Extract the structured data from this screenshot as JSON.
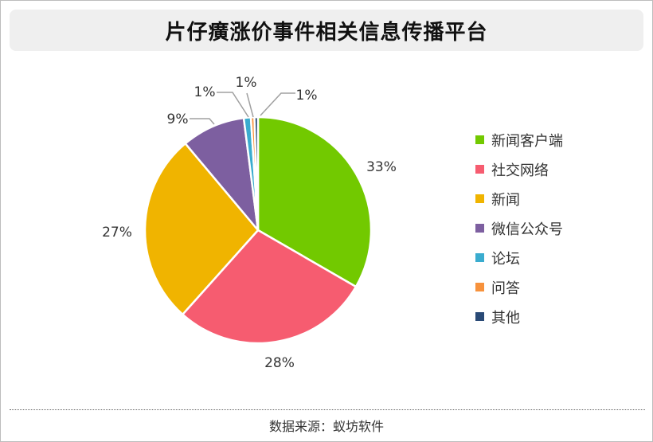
{
  "title": "片仔癀涨价事件相关信息传播平台",
  "source": "数据来源：蚁坊软件",
  "chart_data": {
    "type": "pie",
    "categories": [
      "新闻客户端",
      "社交网络",
      "新闻",
      "微信公众号",
      "论坛",
      "问答",
      "其他"
    ],
    "values": [
      33,
      28,
      27,
      9,
      1,
      0.5,
      0.5
    ],
    "data_labels": [
      "33%",
      "28%",
      "27%",
      "9%",
      "1%",
      "1%",
      "1%"
    ],
    "colors": [
      "#72c900",
      "#f65c70",
      "#f0b400",
      "#7d5fa0",
      "#3aaccf",
      "#f7923c",
      "#2a4a76"
    ],
    "start_angle_deg": 0,
    "direction": "clockwise",
    "legend_position": "right"
  }
}
